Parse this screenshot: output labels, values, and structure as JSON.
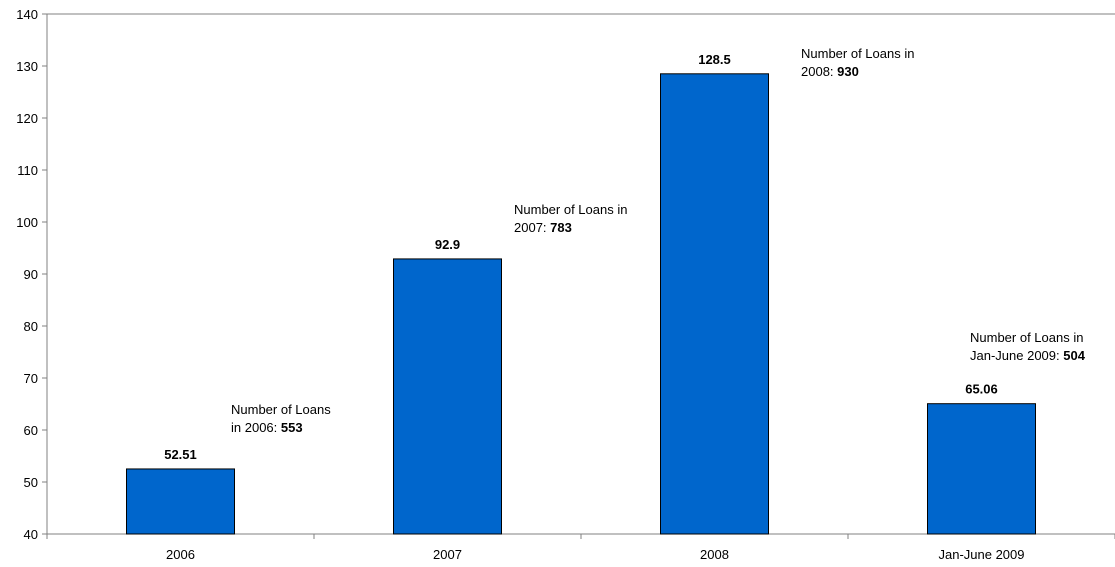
{
  "chart_data": {
    "type": "bar",
    "categories": [
      "2006",
      "2007",
      "2008",
      "Jan-June 2009"
    ],
    "values": [
      52.51,
      92.9,
      128.5,
      65.06
    ],
    "value_labels": [
      "52.51",
      "92.9",
      "128.5",
      "65.06"
    ],
    "ylim": [
      40,
      140
    ],
    "yticks": [
      "40",
      "50",
      "60",
      "70",
      "80",
      "90",
      "100",
      "110",
      "120",
      "130",
      "140"
    ],
    "grid": false,
    "bar_color": "#0066CC",
    "annotations": [
      {
        "line1": "Number of Loans",
        "line2_prefix": "in 2006: ",
        "line2_value": "553"
      },
      {
        "line1": "Number of Loans in",
        "line2_prefix": "2007: ",
        "line2_value": "783"
      },
      {
        "line1": "Number of Loans in",
        "line2_prefix": "2008: ",
        "line2_value": "930"
      },
      {
        "line1": "Number of Loans in",
        "line2_prefix": "Jan-June 2009: ",
        "line2_value": "504"
      }
    ]
  }
}
